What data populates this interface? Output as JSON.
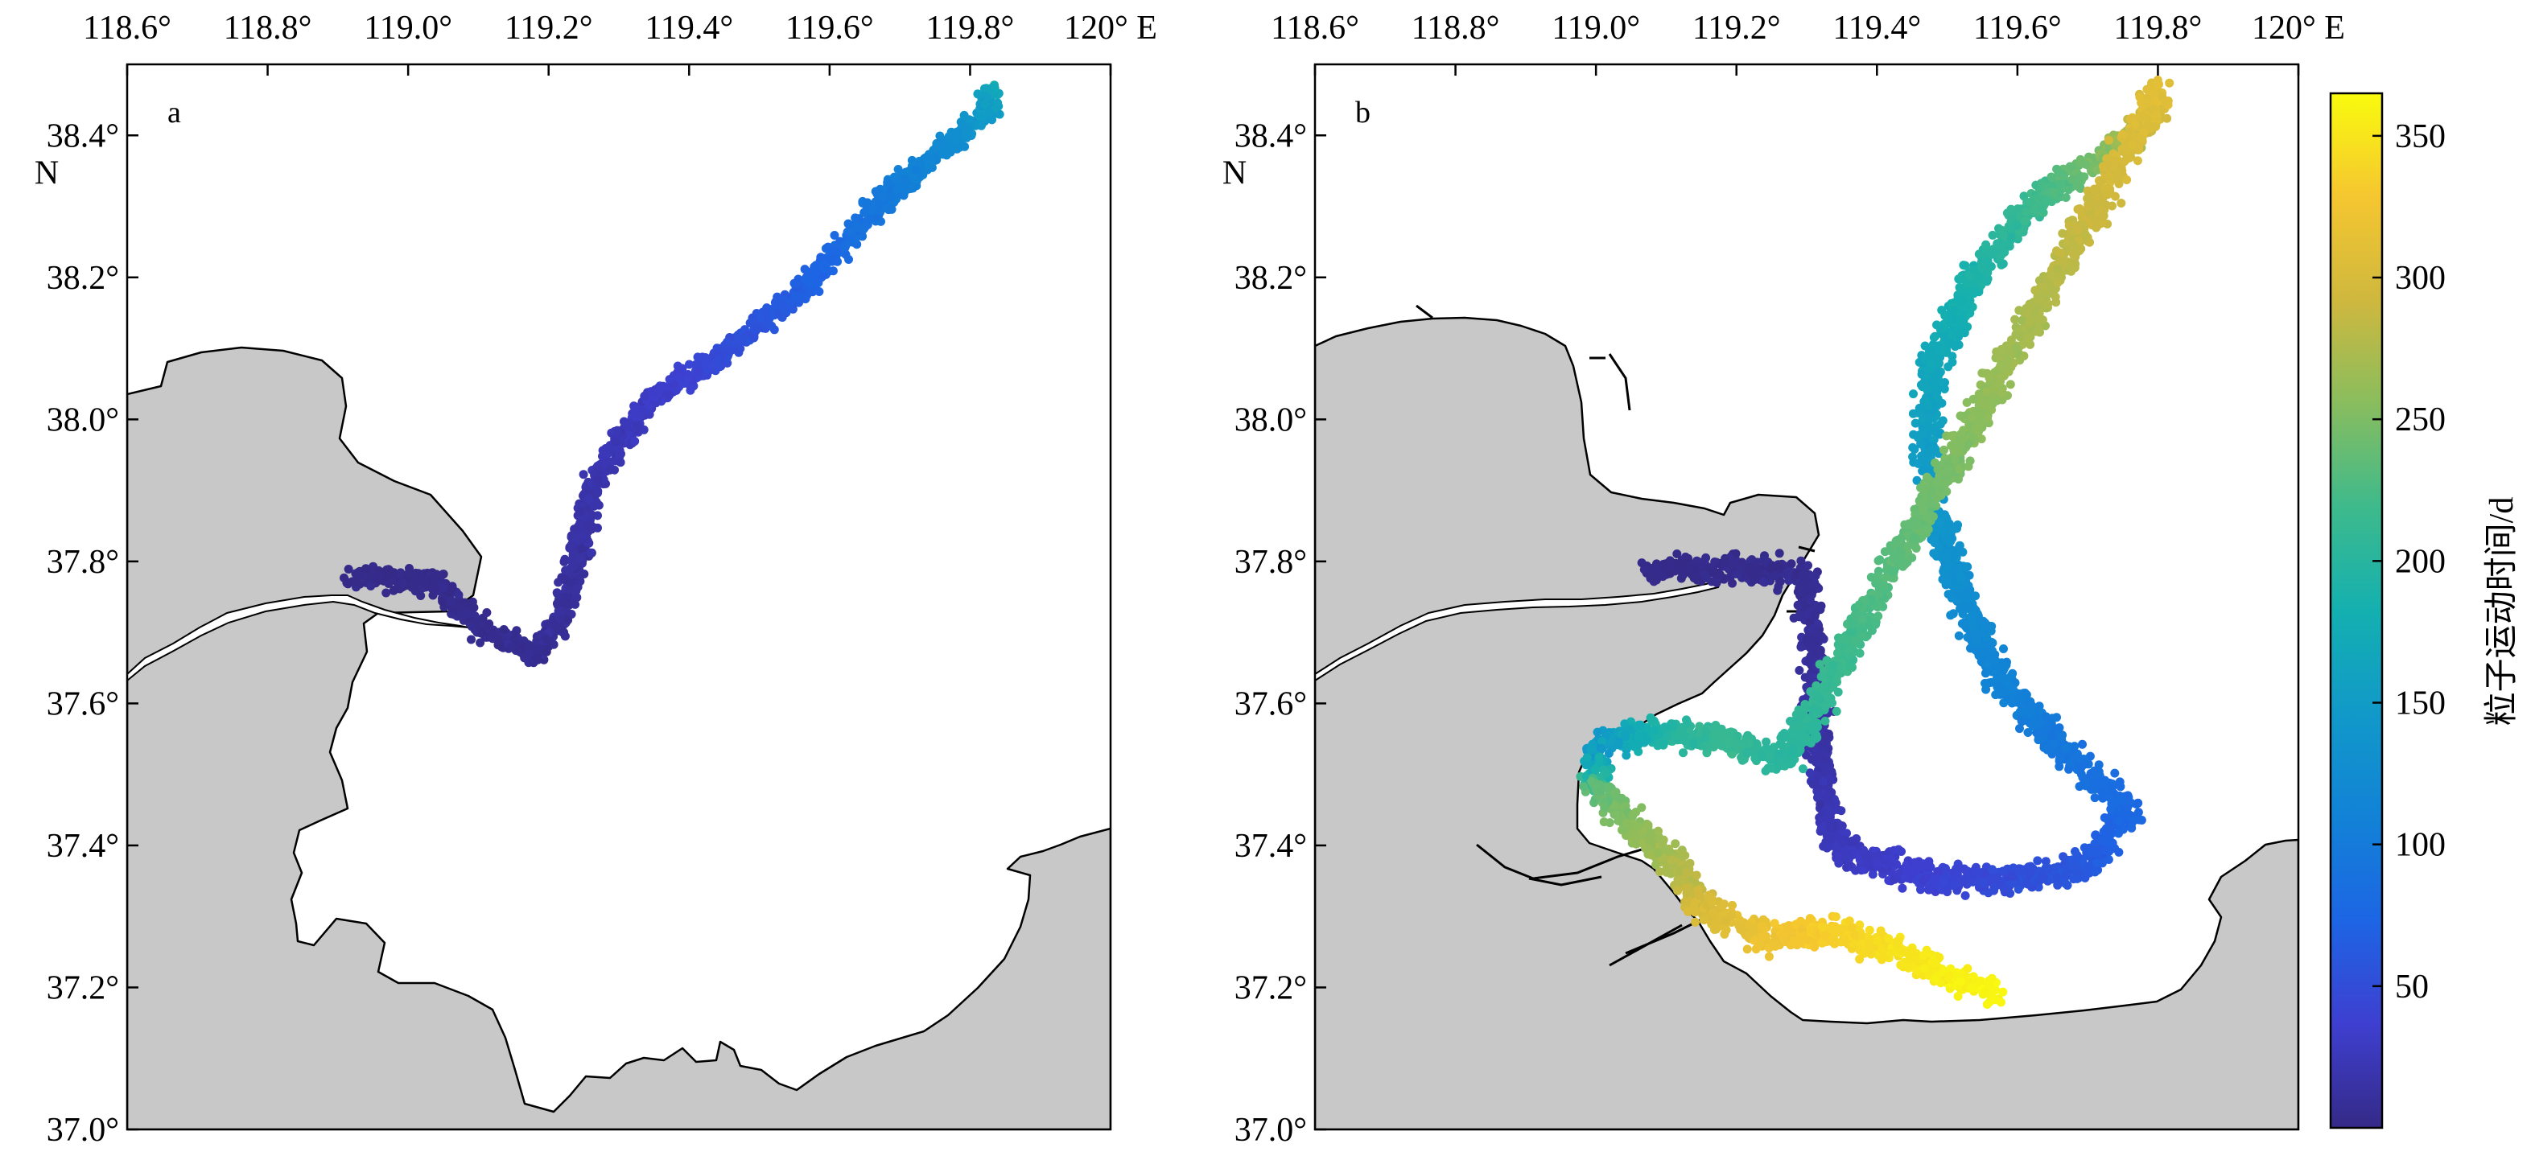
{
  "colors": {
    "land": "#c8c8c8",
    "coast": "#000000",
    "sea": "#ffffff"
  },
  "colorbar": {
    "label": "粒子运动时间/d",
    "ticks": [
      50,
      100,
      150,
      200,
      250,
      300,
      350
    ],
    "range": [
      0,
      365
    ],
    "colormap": "parula"
  },
  "panels": [
    {
      "label": "a",
      "x_ticks": [
        "118.6°",
        "118.8°",
        "119.0°",
        "119.2°",
        "119.4°",
        "119.6°",
        "119.8°",
        "120° E"
      ],
      "y_ticks": [
        "38.4°",
        "38.2°",
        "38.0°",
        "37.8°",
        "37.6°",
        "37.4°",
        "37.2°",
        "37.0°"
      ],
      "y_unit": "N",
      "lon_range": [
        118.6,
        120.0
      ],
      "lat_range": [
        37.0,
        38.5
      ]
    },
    {
      "label": "b",
      "x_ticks": [
        "118.6°",
        "118.8°",
        "119.0°",
        "119.2°",
        "119.4°",
        "119.6°",
        "119.8°",
        "120° E"
      ],
      "y_ticks": [
        "38.4°",
        "38.2°",
        "38.0°",
        "37.8°",
        "37.6°",
        "37.4°",
        "37.2°",
        "37.0°"
      ],
      "y_unit": "N",
      "lon_range": [
        118.6,
        120.0
      ],
      "lat_range": [
        37.0,
        38.5
      ]
    }
  ],
  "chart_data": [
    {
      "type": "scatter",
      "label": "a",
      "trajectory": [
        {
          "lon": 118.92,
          "lat": 37.78,
          "t": 1
        },
        {
          "lon": 119.04,
          "lat": 37.77,
          "t": 2
        },
        {
          "lon": 119.11,
          "lat": 37.7,
          "t": 4
        },
        {
          "lon": 119.18,
          "lat": 37.67,
          "t": 6
        },
        {
          "lon": 119.22,
          "lat": 37.72,
          "t": 9
        },
        {
          "lon": 119.24,
          "lat": 37.8,
          "t": 13
        },
        {
          "lon": 119.26,
          "lat": 37.9,
          "t": 18
        },
        {
          "lon": 119.3,
          "lat": 37.97,
          "t": 24
        },
        {
          "lon": 119.35,
          "lat": 38.03,
          "t": 32
        },
        {
          "lon": 119.43,
          "lat": 38.08,
          "t": 45
        },
        {
          "lon": 119.51,
          "lat": 38.14,
          "t": 58
        },
        {
          "lon": 119.58,
          "lat": 38.2,
          "t": 72
        },
        {
          "lon": 119.64,
          "lat": 38.27,
          "t": 88
        },
        {
          "lon": 119.7,
          "lat": 38.33,
          "t": 104
        },
        {
          "lon": 119.76,
          "lat": 38.38,
          "t": 120
        },
        {
          "lon": 119.82,
          "lat": 38.43,
          "t": 145
        },
        {
          "lon": 119.84,
          "lat": 38.47,
          "t": 175
        }
      ]
    },
    {
      "type": "scatter",
      "label": "b",
      "trajectory": [
        {
          "lon": 119.08,
          "lat": 37.79,
          "t": 1
        },
        {
          "lon": 119.21,
          "lat": 37.79,
          "t": 3
        },
        {
          "lon": 119.3,
          "lat": 37.78,
          "t": 5
        },
        {
          "lon": 119.31,
          "lat": 37.66,
          "t": 10
        },
        {
          "lon": 119.32,
          "lat": 37.5,
          "t": 18
        },
        {
          "lon": 119.34,
          "lat": 37.4,
          "t": 26
        },
        {
          "lon": 119.45,
          "lat": 37.36,
          "t": 36
        },
        {
          "lon": 119.58,
          "lat": 37.35,
          "t": 48
        },
        {
          "lon": 119.7,
          "lat": 37.37,
          "t": 62
        },
        {
          "lon": 119.76,
          "lat": 37.45,
          "t": 78
        },
        {
          "lon": 119.66,
          "lat": 37.54,
          "t": 95
        },
        {
          "lon": 119.57,
          "lat": 37.64,
          "t": 112
        },
        {
          "lon": 119.51,
          "lat": 37.78,
          "t": 130
        },
        {
          "lon": 119.47,
          "lat": 37.94,
          "t": 150
        },
        {
          "lon": 119.48,
          "lat": 38.08,
          "t": 168
        },
        {
          "lon": 119.54,
          "lat": 38.2,
          "t": 190
        },
        {
          "lon": 119.62,
          "lat": 38.3,
          "t": 215
        },
        {
          "lon": 119.72,
          "lat": 38.37,
          "t": 250
        },
        {
          "lon": 119.78,
          "lat": 38.41,
          "t": 285
        },
        {
          "lon": 119.8,
          "lat": 38.46,
          "t": 310
        },
        {
          "lon": 119.27,
          "lat": 37.52,
          "t": 200
        },
        {
          "lon": 119.18,
          "lat": 37.55,
          "t": 215
        },
        {
          "lon": 119.08,
          "lat": 37.56,
          "t": 190
        },
        {
          "lon": 119.0,
          "lat": 37.54,
          "t": 140
        },
        {
          "lon": 119.0,
          "lat": 37.48,
          "t": 235
        },
        {
          "lon": 119.05,
          "lat": 37.43,
          "t": 255
        },
        {
          "lon": 119.12,
          "lat": 37.37,
          "t": 275
        },
        {
          "lon": 119.15,
          "lat": 37.31,
          "t": 300
        },
        {
          "lon": 119.24,
          "lat": 37.27,
          "t": 320
        },
        {
          "lon": 119.33,
          "lat": 37.28,
          "t": 335
        },
        {
          "lon": 119.43,
          "lat": 37.25,
          "t": 348
        },
        {
          "lon": 119.52,
          "lat": 37.21,
          "t": 358
        },
        {
          "lon": 119.57,
          "lat": 37.19,
          "t": 362
        }
      ]
    }
  ]
}
